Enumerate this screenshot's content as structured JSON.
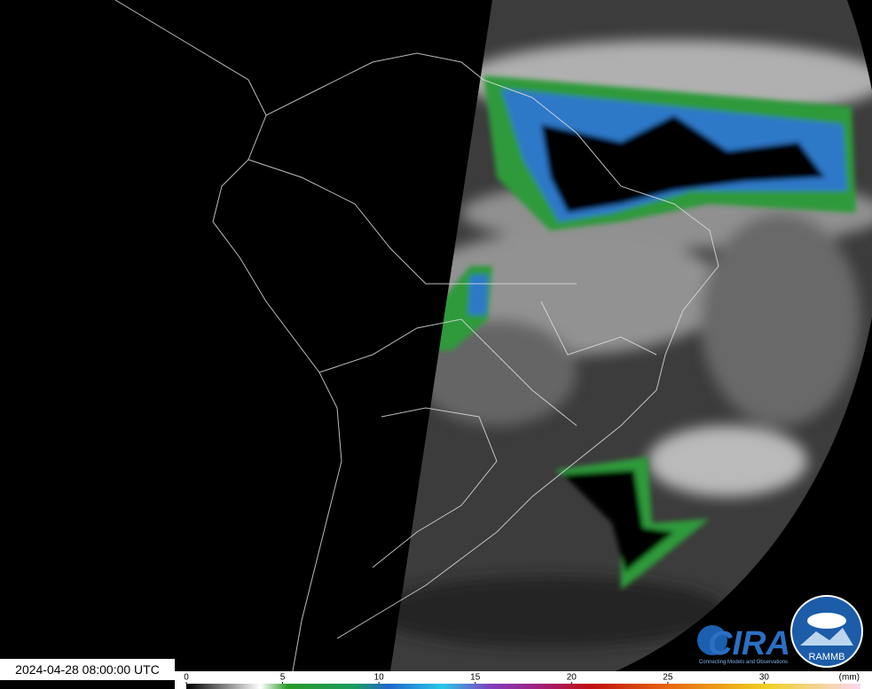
{
  "timestamp": "2024-04-28 08:00:00 UTC",
  "colorbar": {
    "ticks": [
      0,
      5,
      10,
      15,
      20,
      25,
      30
    ],
    "range": [
      0,
      35
    ],
    "unit": "(mm)"
  },
  "logos": {
    "cira": "CIRA",
    "cira_tagline": "Connecting Models and Observations",
    "rammb": "RAMMB"
  }
}
